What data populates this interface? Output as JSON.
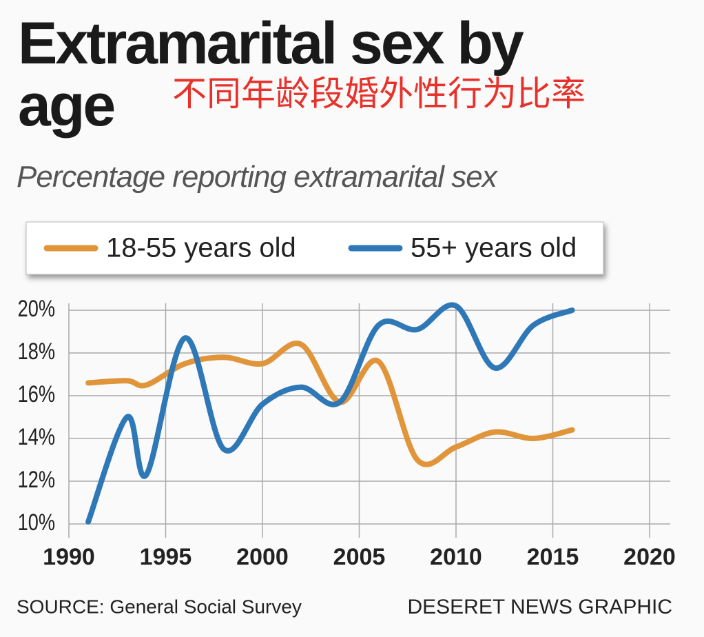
{
  "chart_data": {
    "type": "line",
    "title": "Extramarital sex by age",
    "annotation": "不同年龄段婚外性行为比率",
    "subtitle": "Percentage reporting extramarital sex",
    "source": "SOURCE: General Social Survey",
    "credit": "DESERET NEWS GRAPHIC",
    "x": [
      1991,
      1993,
      1994,
      1996,
      1998,
      2000,
      2002,
      2004,
      2006,
      2008,
      2010,
      2012,
      2014,
      2016
    ],
    "series": [
      {
        "name": "18-55 years old",
        "color": "#e0953a",
        "values": [
          16.6,
          16.7,
          16.5,
          17.5,
          17.8,
          17.5,
          18.4,
          15.7,
          17.6,
          13.0,
          13.6,
          14.3,
          14.0,
          14.4
        ]
      },
      {
        "name": "55+ years old",
        "color": "#2f78b8",
        "values": [
          10.1,
          15.0,
          12.3,
          18.7,
          13.5,
          15.6,
          16.4,
          15.7,
          19.3,
          19.1,
          20.2,
          17.3,
          19.3,
          20.0
        ]
      }
    ],
    "xlim": [
      1990,
      2020
    ],
    "xticks": [
      1990,
      1995,
      2000,
      2005,
      2010,
      2015,
      2020
    ],
    "ylim": [
      10,
      20
    ],
    "yticks": [
      {
        "value": 10,
        "label": "10%"
      },
      {
        "value": 12,
        "label": "12%"
      },
      {
        "value": 14,
        "label": "14%"
      },
      {
        "value": 16,
        "label": "16%"
      },
      {
        "value": 18,
        "label": "18%"
      },
      {
        "value": 20,
        "label": "20%"
      }
    ],
    "grid": true
  }
}
